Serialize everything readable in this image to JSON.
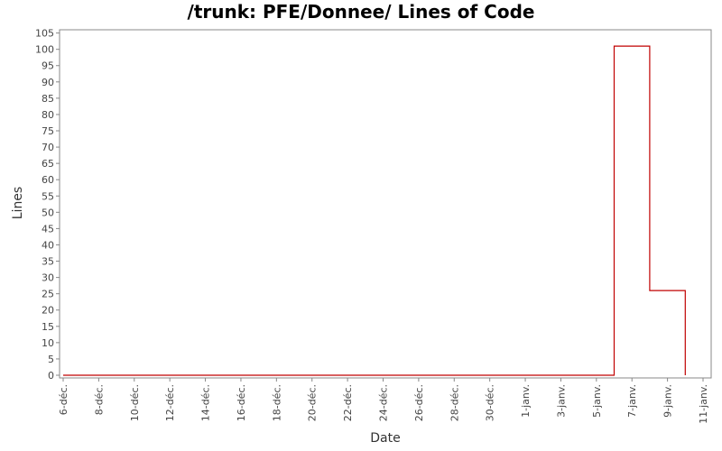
{
  "chart_data": {
    "type": "line",
    "title": "/trunk: PFE/Donnee/ Lines of Code",
    "xlabel": "Date",
    "ylabel": "Lines",
    "x_ticks": [
      "6-déc.",
      "8-déc.",
      "10-déc.",
      "12-déc.",
      "14-déc.",
      "16-déc.",
      "18-déc.",
      "20-déc.",
      "22-déc.",
      "24-déc.",
      "26-déc.",
      "28-déc.",
      "30-déc.",
      "1-janv.",
      "3-janv.",
      "5-janv.",
      "7-janv.",
      "9-janv.",
      "11-janv."
    ],
    "y_ticks": [
      0,
      5,
      10,
      15,
      20,
      25,
      30,
      35,
      40,
      45,
      50,
      55,
      60,
      65,
      70,
      75,
      80,
      85,
      90,
      95,
      100,
      105
    ],
    "ylim": [
      0,
      106
    ],
    "grid": false,
    "step": true,
    "series": [
      {
        "color": "#c00000",
        "x": [
          "2009-12-06",
          "2010-01-06",
          "2010-01-06",
          "2010-01-08",
          "2010-01-08",
          "2010-01-10",
          "2010-01-10"
        ],
        "values": [
          0,
          0,
          101,
          101,
          26,
          26,
          0
        ]
      }
    ]
  }
}
